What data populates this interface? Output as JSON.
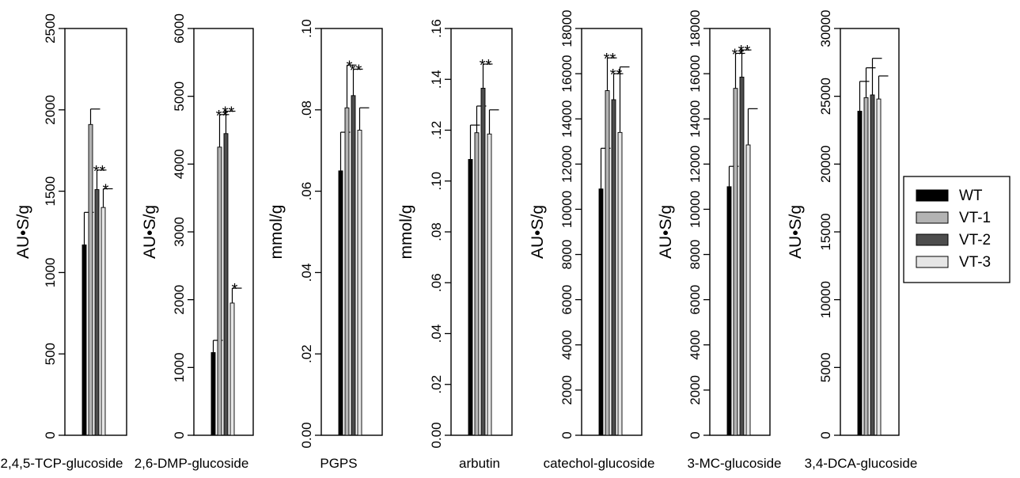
{
  "legend": {
    "position": "right",
    "entries": [
      {
        "label": "WT",
        "color": "#000000"
      },
      {
        "label": "VT-1",
        "color": "#b3b3b3"
      },
      {
        "label": "VT-2",
        "color": "#4d4d4d"
      },
      {
        "label": "VT-3",
        "color": "#e6e6e6"
      }
    ]
  },
  "chart_data": [
    {
      "type": "bar",
      "category": "2,4,5-TCP-glucoside",
      "ylabel": "AU•S/g",
      "ylim": [
        0,
        2500
      ],
      "ticks": [
        0,
        500,
        1000,
        1500,
        2000,
        2500
      ],
      "tick_labels": [
        "0",
        "500",
        "1000",
        "1500",
        "2000",
        "2500"
      ],
      "series": [
        "WT",
        "VT-1",
        "VT-2",
        "VT-3"
      ],
      "values": [
        1170,
        1910,
        1510,
        1400
      ],
      "errors": [
        200,
        95,
        120,
        115
      ],
      "significance": [
        "",
        "",
        "**",
        "*"
      ]
    },
    {
      "type": "bar",
      "category": "2,6-DMP-glucoside",
      "ylabel": "AU•S/g",
      "ylim": [
        0,
        6000
      ],
      "ticks": [
        0,
        1000,
        2000,
        3000,
        4000,
        5000,
        6000
      ],
      "tick_labels": [
        "0",
        "1000",
        "2000",
        "3000",
        "4000",
        "5000",
        "6000"
      ],
      "series": [
        "WT",
        "VT-1",
        "VT-2",
        "VT-3"
      ],
      "values": [
        1220,
        4250,
        4450,
        1950
      ],
      "errors": [
        180,
        480,
        330,
        220
      ],
      "significance": [
        "",
        "**",
        "**",
        "*"
      ]
    },
    {
      "type": "bar",
      "category": "PGPS",
      "ylabel": "mmol/g",
      "ylim": [
        0,
        0.1
      ],
      "ticks": [
        0,
        0.02,
        0.04,
        0.06,
        0.08,
        0.1
      ],
      "tick_labels": [
        "0.00",
        ".02",
        ".04",
        ".06",
        ".08",
        ".10"
      ],
      "series": [
        "WT",
        "VT-1",
        "VT-2",
        "VT-3"
      ],
      "values": [
        0.065,
        0.0805,
        0.0835,
        0.075
      ],
      "errors": [
        0.0095,
        0.0105,
        0.0065,
        0.0055
      ],
      "significance": [
        "",
        "*",
        "**",
        ""
      ]
    },
    {
      "type": "bar",
      "category": "arbutin",
      "ylabel": "mmol/g",
      "ylim": [
        0,
        0.16
      ],
      "ticks": [
        0,
        0.02,
        0.04,
        0.06,
        0.08,
        0.1,
        0.12,
        0.14,
        0.16
      ],
      "tick_labels": [
        "0.00",
        ".02",
        ".04",
        ".06",
        ".08",
        ".10",
        ".12",
        ".14",
        ".16"
      ],
      "series": [
        "WT",
        "VT-1",
        "VT-2",
        "VT-3"
      ],
      "values": [
        0.1085,
        0.119,
        0.1365,
        0.1185
      ],
      "errors": [
        0.0135,
        0.0105,
        0.0095,
        0.0095
      ],
      "significance": [
        "",
        "",
        "**",
        ""
      ]
    },
    {
      "type": "bar",
      "category": "catechol-glucoside",
      "ylabel": "AU•S/g",
      "ylim": [
        0,
        18000
      ],
      "ticks": [
        0,
        2000,
        4000,
        6000,
        8000,
        10000,
        12000,
        14000,
        16000,
        18000
      ],
      "tick_labels": [
        "0",
        "2000",
        "4000",
        "6000",
        "8000",
        "10000",
        "12000",
        "14000",
        "16000",
        "18000"
      ],
      "series": [
        "WT",
        "VT-1",
        "VT-2",
        "VT-3"
      ],
      "values": [
        10900,
        15250,
        14850,
        13400
      ],
      "errors": [
        1800,
        1450,
        1150,
        2900
      ],
      "significance": [
        "",
        "**",
        "**",
        ""
      ]
    },
    {
      "type": "bar",
      "category": "3-MC-glucoside",
      "ylabel": "AU•S/g",
      "ylim": [
        0,
        18000
      ],
      "ticks": [
        0,
        2000,
        4000,
        6000,
        8000,
        10000,
        12000,
        14000,
        16000,
        18000
      ],
      "tick_labels": [
        "0",
        "2000",
        "4000",
        "6000",
        "8000",
        "10000",
        "12000",
        "14000",
        "16000",
        "18000"
      ],
      "series": [
        "WT",
        "VT-1",
        "VT-2",
        "VT-3"
      ],
      "values": [
        11000,
        15350,
        15850,
        12850
      ],
      "errors": [
        900,
        1550,
        1200,
        1600
      ],
      "significance": [
        "",
        "**",
        "**",
        ""
      ]
    },
    {
      "type": "bar",
      "category": "3,4-DCA-glucoside",
      "ylabel": "AU•S/g",
      "ylim": [
        0,
        30000
      ],
      "ticks": [
        0,
        5000,
        10000,
        15000,
        20000,
        25000,
        30000
      ],
      "tick_labels": [
        "0",
        "5000",
        "10000",
        "15000",
        "20000",
        "25000",
        "30000"
      ],
      "series": [
        "WT",
        "VT-1",
        "VT-2",
        "VT-3"
      ],
      "values": [
        23900,
        24900,
        25100,
        24800
      ],
      "errors": [
        2200,
        2200,
        2700,
        1700
      ],
      "significance": [
        "",
        "",
        "",
        ""
      ]
    }
  ]
}
